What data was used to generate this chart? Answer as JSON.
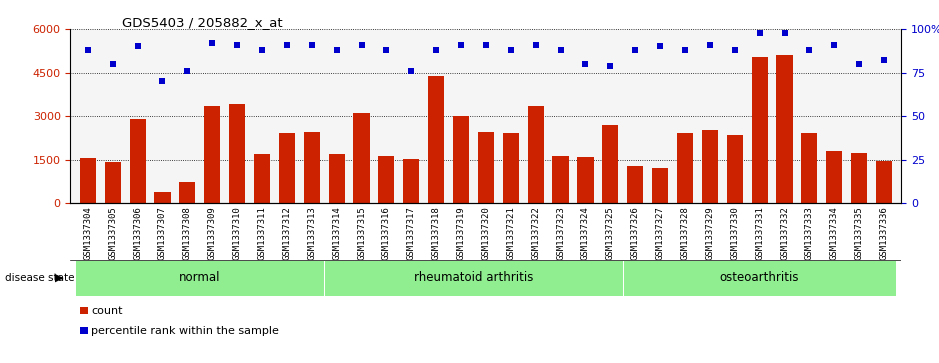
{
  "title": "GDS5403 / 205882_x_at",
  "samples": [
    "GSM1337304",
    "GSM1337305",
    "GSM1337306",
    "GSM1337307",
    "GSM1337308",
    "GSM1337309",
    "GSM1337310",
    "GSM1337311",
    "GSM1337312",
    "GSM1337313",
    "GSM1337314",
    "GSM1337315",
    "GSM1337316",
    "GSM1337317",
    "GSM1337318",
    "GSM1337319",
    "GSM1337320",
    "GSM1337321",
    "GSM1337322",
    "GSM1337323",
    "GSM1337324",
    "GSM1337325",
    "GSM1337326",
    "GSM1337327",
    "GSM1337328",
    "GSM1337329",
    "GSM1337330",
    "GSM1337331",
    "GSM1337332",
    "GSM1337333",
    "GSM1337334",
    "GSM1337335",
    "GSM1337336"
  ],
  "counts": [
    1550,
    1420,
    2900,
    400,
    750,
    3350,
    3420,
    1680,
    2430,
    2450,
    1680,
    3100,
    1620,
    1520,
    4400,
    3000,
    2450,
    2430,
    3340,
    1620,
    1580,
    2680,
    1300,
    1200,
    2430,
    2530,
    2350,
    5050,
    5100,
    2430,
    1800,
    1720,
    1450
  ],
  "percentile_ranks": [
    88,
    80,
    90,
    70,
    76,
    92,
    91,
    88,
    91,
    91,
    88,
    91,
    88,
    76,
    88,
    91,
    91,
    88,
    91,
    88,
    80,
    79,
    88,
    90,
    88,
    91,
    88,
    98,
    98,
    88,
    91,
    80,
    82
  ],
  "group_boundaries": [
    0,
    10,
    22,
    33
  ],
  "group_labels": [
    "normal",
    "rheumatoid arthritis",
    "osteoarthritis"
  ],
  "group_color": "#90EE90",
  "group_color_dark": "#5DC85D",
  "bar_color": "#CC2200",
  "scatter_color": "#0000CC",
  "ylim_left": [
    0,
    6000
  ],
  "ylim_right": [
    0,
    100
  ],
  "yticks_left": [
    0,
    1500,
    3000,
    4500,
    6000
  ],
  "yticks_right": [
    0,
    25,
    50,
    75,
    100
  ],
  "xtick_bg": "#D8D8D8",
  "plot_bg": "#FFFFFF",
  "axes_bg": "#F5F5F5"
}
